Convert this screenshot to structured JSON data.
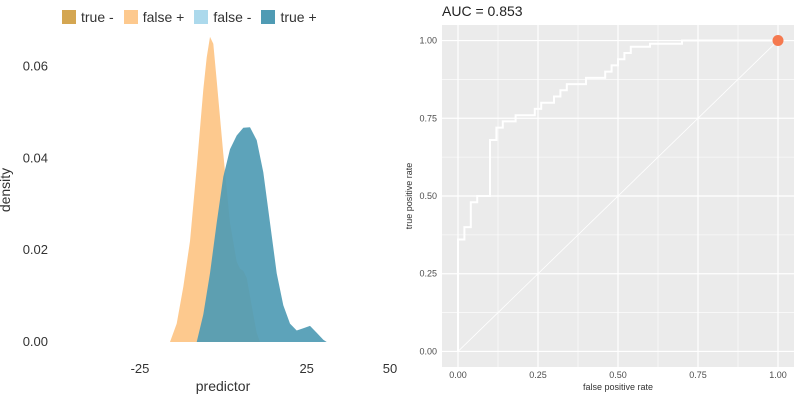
{
  "chart_data": [
    {
      "type": "area",
      "legend": {
        "placement": "top",
        "entries": [
          {
            "label": "true -",
            "color": "#d4a651"
          },
          {
            "label": "false +",
            "color": "#fdc98e"
          },
          {
            "label": "false -",
            "color": "#acd9ec"
          },
          {
            "label": "true +",
            "color": "#4f9bb4"
          }
        ]
      },
      "xlabel": "predictor",
      "ylabel": "density",
      "xlim": [
        -37,
        50
      ],
      "ylim": [
        0,
        0.068
      ],
      "xticks": [
        -25,
        25,
        50
      ],
      "xtick_labels": [
        "-25",
        "25",
        "50"
      ],
      "yticks": [
        0,
        0.02,
        0.04,
        0.06
      ],
      "ytick_labels": [
        "0.00",
        "0.02",
        "0.04",
        "0.06"
      ],
      "grid": false,
      "series": [
        {
          "name": "false +",
          "color": "#fdc98e",
          "x": [
            -16,
            -14,
            -12,
            -10,
            -8,
            -6,
            -5,
            -4,
            -3,
            -2,
            0,
            2,
            4,
            5,
            6,
            7,
            8,
            9,
            10,
            11
          ],
          "y": [
            0,
            0.004,
            0.012,
            0.022,
            0.038,
            0.055,
            0.062,
            0.0665,
            0.065,
            0.057,
            0.041,
            0.026,
            0.0175,
            0.016,
            0.0155,
            0.014,
            0.01,
            0.006,
            0.002,
            0
          ]
        },
        {
          "name": "true +",
          "color": "#4f9bb4",
          "x": [
            -8,
            -6,
            -4,
            -2,
            0,
            2,
            4,
            6,
            8,
            10,
            12,
            14,
            16,
            18,
            20,
            22,
            24,
            26,
            28,
            30,
            31
          ],
          "y": [
            0,
            0.006,
            0.015,
            0.026,
            0.036,
            0.042,
            0.045,
            0.0467,
            0.0468,
            0.044,
            0.037,
            0.026,
            0.015,
            0.008,
            0.004,
            0.0025,
            0.003,
            0.0035,
            0.002,
            0.0005,
            0
          ]
        }
      ]
    },
    {
      "type": "line",
      "title": "AUC = 0.853",
      "xlabel": "false positive rate",
      "ylabel": "true positive rate",
      "xlim": [
        -0.05,
        1.05
      ],
      "ylim": [
        -0.05,
        1.05
      ],
      "xticks": [
        0,
        0.25,
        0.5,
        0.75,
        1
      ],
      "xtick_labels": [
        "0.00",
        "0.25",
        "0.50",
        "0.75",
        "1.00"
      ],
      "yticks": [
        0,
        0.25,
        0.5,
        0.75,
        1
      ],
      "ytick_labels": [
        "0.00",
        "0.25",
        "0.50",
        "0.75",
        "1.00"
      ],
      "grid": true,
      "series": [
        {
          "name": "roc",
          "color": "#ffffff",
          "x": [
            0,
            0,
            0.02,
            0.02,
            0.04,
            0.04,
            0.06,
            0.06,
            0.1,
            0.1,
            0.12,
            0.12,
            0.14,
            0.14,
            0.18,
            0.18,
            0.24,
            0.24,
            0.26,
            0.26,
            0.3,
            0.3,
            0.32,
            0.32,
            0.34,
            0.34,
            0.4,
            0.4,
            0.46,
            0.46,
            0.48,
            0.48,
            0.5,
            0.5,
            0.52,
            0.52,
            0.54,
            0.54,
            0.6,
            0.6,
            0.7,
            0.7,
            1.0
          ],
          "y": [
            0,
            0.36,
            0.36,
            0.4,
            0.4,
            0.48,
            0.48,
            0.5,
            0.5,
            0.68,
            0.68,
            0.72,
            0.72,
            0.74,
            0.74,
            0.76,
            0.76,
            0.78,
            0.78,
            0.8,
            0.8,
            0.82,
            0.82,
            0.84,
            0.84,
            0.86,
            0.86,
            0.88,
            0.88,
            0.9,
            0.9,
            0.92,
            0.92,
            0.94,
            0.94,
            0.96,
            0.96,
            0.98,
            0.98,
            0.99,
            0.99,
            1.0,
            1.0
          ]
        },
        {
          "name": "reference",
          "color": "#ffffff",
          "x": [
            0,
            1
          ],
          "y": [
            0,
            1
          ]
        }
      ],
      "marker": {
        "x": 1.0,
        "y": 1.0,
        "color": "#f5794f"
      },
      "background": "#ebebeb"
    }
  ]
}
